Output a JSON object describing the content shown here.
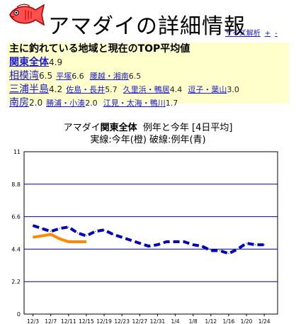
{
  "header": {
    "title": "アマダイの詳細情報",
    "links": [
      {
        "label": "サイズ解析"
      },
      {
        "label": "+"
      },
      {
        "label": "-"
      }
    ]
  },
  "summary": {
    "heading": "主に釣れている地域と現在のTOP平均値",
    "rows": [
      {
        "name": "関東全体",
        "value": "4.9",
        "bold": true,
        "subs": []
      },
      {
        "name": "相模湾",
        "value": "6.5",
        "subs": [
          {
            "name": "平塚",
            "value": "6.6"
          },
          {
            "name": "腰越・湘南",
            "value": "6.5"
          }
        ]
      },
      {
        "name": "三浦半島",
        "value": "4.2",
        "subs": [
          {
            "name": "佐島・長井",
            "value": "5.7"
          },
          {
            "name": "久里浜・鴨居",
            "value": "4.4"
          },
          {
            "name": "逗子・葉山",
            "value": "3.0"
          }
        ]
      },
      {
        "name": "南房",
        "value": "2.0",
        "subs": [
          {
            "name": "勝浦・小湊",
            "value": "2.0"
          },
          {
            "name": "江見・太海・鴨川",
            "value": "1.7"
          }
        ]
      }
    ]
  },
  "chart_title": {
    "fish": "アマダイ",
    "region": "関東全体",
    "rest": "例年と今年 [4日平均]",
    "line2": "実線:今年(橙) 破線:例年(青)"
  },
  "chart_data": {
    "type": "line",
    "title": "アマダイ関東全体 例年と今年 [4日平均]",
    "subtitle": "実線:今年(橙) 破線:例年(青)",
    "categories": [
      "12/3",
      "12/7",
      "12/11",
      "12/15",
      "12/19",
      "12/23",
      "12/27",
      "12/31",
      "1/4",
      "1/8",
      "1/12",
      "1/16",
      "1/20",
      "1/24"
    ],
    "y_ticks": [
      0,
      2.2,
      4.4,
      6.6,
      8.8,
      11
    ],
    "ylim": [
      0,
      11
    ],
    "x_start": "12/1",
    "x_end": "1/27",
    "grid": true,
    "series": [
      {
        "color": "#0000bb",
        "dashed": true,
        "points": [
          [
            "12/3",
            6.0
          ],
          [
            "12/5",
            5.8
          ],
          [
            "12/7",
            5.6
          ],
          [
            "12/9",
            5.8
          ],
          [
            "12/11",
            5.9
          ],
          [
            "12/13",
            5.5
          ],
          [
            "12/15",
            5.3
          ],
          [
            "12/17",
            5.6
          ],
          [
            "12/19",
            5.7
          ],
          [
            "12/21",
            5.4
          ],
          [
            "12/23",
            5.2
          ],
          [
            "12/25",
            5.0
          ],
          [
            "12/27",
            4.8
          ],
          [
            "12/29",
            4.6
          ],
          [
            "12/31",
            4.7
          ],
          [
            "1/2",
            4.9
          ],
          [
            "1/4",
            4.9
          ],
          [
            "1/6",
            4.9
          ],
          [
            "1/8",
            4.7
          ],
          [
            "1/10",
            4.6
          ],
          [
            "1/12",
            4.3
          ],
          [
            "1/14",
            4.3
          ],
          [
            "1/16",
            4.1
          ],
          [
            "1/18",
            4.4
          ],
          [
            "1/20",
            4.8
          ],
          [
            "1/22",
            4.7
          ],
          [
            "1/24",
            4.7
          ]
        ]
      },
      {
        "color": "#ff8800",
        "dashed": false,
        "points": [
          [
            "12/3",
            5.2
          ],
          [
            "12/5",
            5.3
          ],
          [
            "12/7",
            5.4
          ],
          [
            "12/9",
            5.1
          ],
          [
            "12/11",
            4.9
          ],
          [
            "12/13",
            4.9
          ],
          [
            "12/15",
            4.9
          ]
        ]
      }
    ]
  }
}
